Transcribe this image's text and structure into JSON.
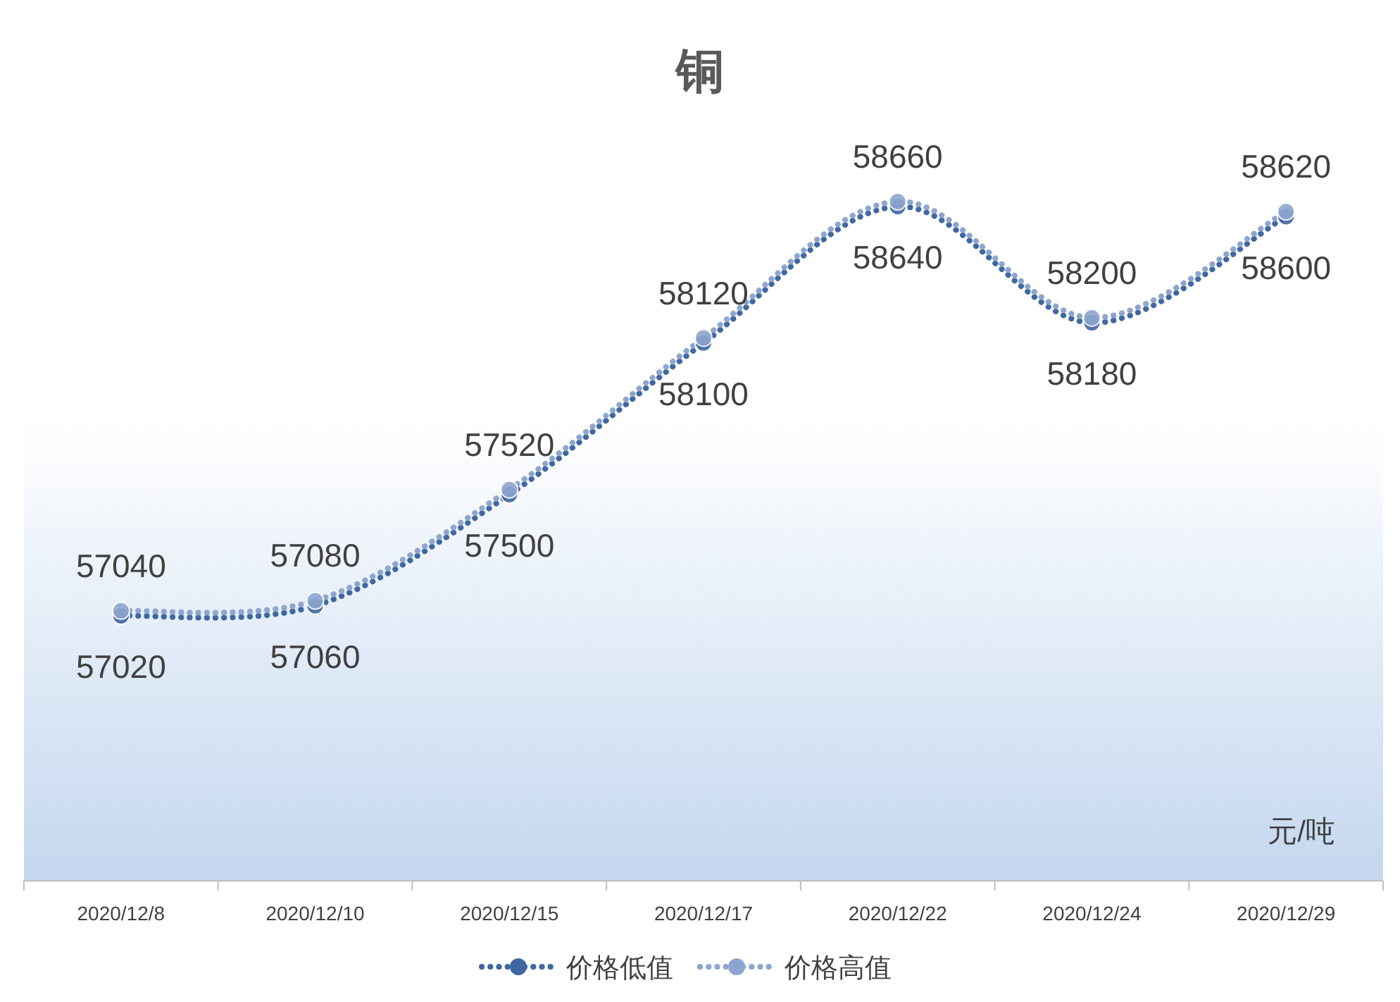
{
  "chart_data": {
    "type": "line",
    "title": "铜",
    "annotations": [
      "元/吨"
    ],
    "categories": [
      "2020/12/8",
      "2020/12/10",
      "2020/12/15",
      "2020/12/17",
      "2020/12/22",
      "2020/12/24",
      "2020/12/29"
    ],
    "series": [
      {
        "name": "价格低值",
        "color": "#3f67a3",
        "values": [
          57020,
          57060,
          57500,
          58100,
          58640,
          58180,
          58600
        ]
      },
      {
        "name": "价格高值",
        "color": "#8ea6cf",
        "values": [
          57040,
          57080,
          57520,
          58120,
          58660,
          58200,
          58620
        ]
      }
    ],
    "data_labels": true,
    "legend": "bottom",
    "marker": "circle",
    "line_style": "dotted"
  }
}
